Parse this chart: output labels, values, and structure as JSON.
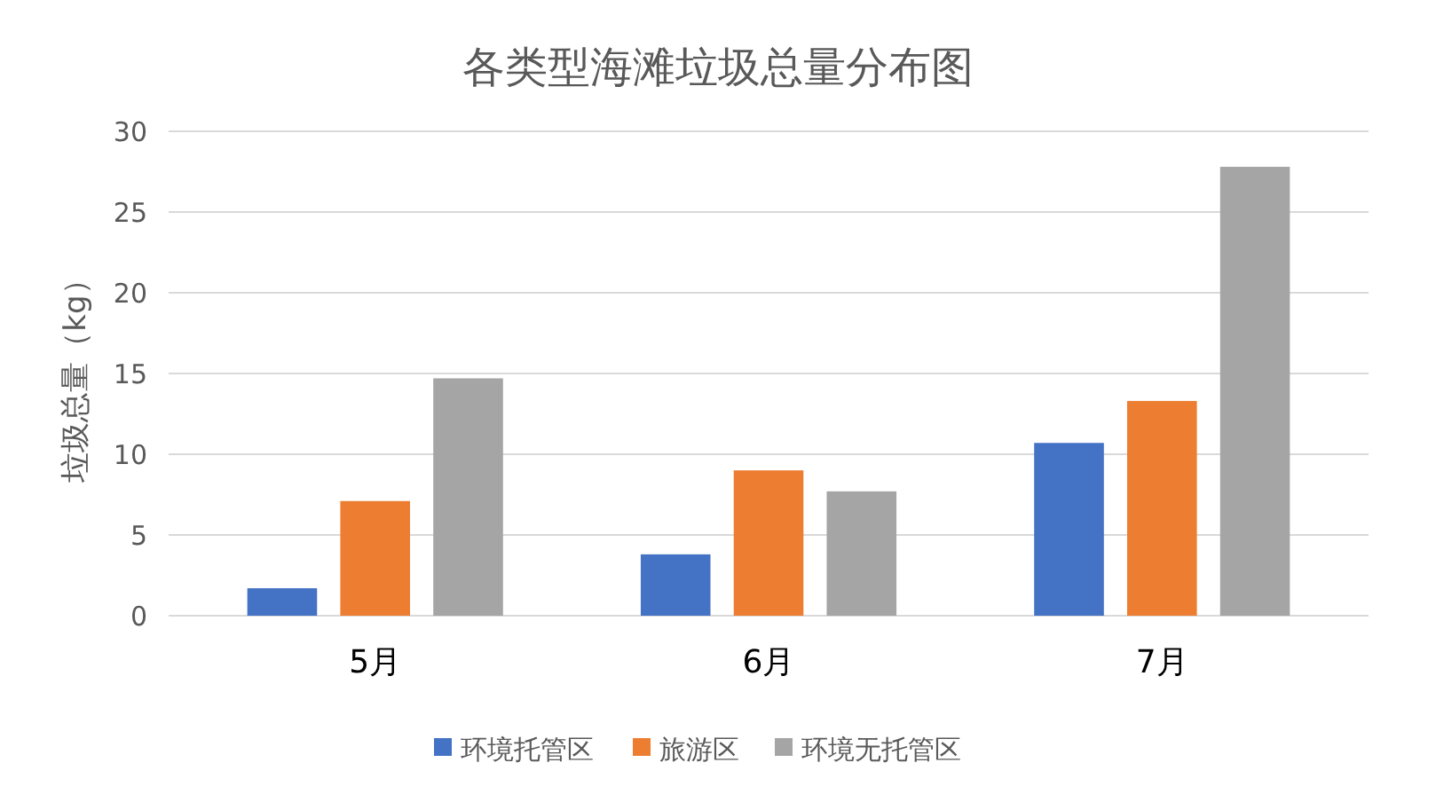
{
  "chart_data": {
    "type": "bar",
    "title": "各类型海滩垃圾总量分布图",
    "ylabel": "垃圾总量（kg）",
    "categories": [
      "5月",
      "6月",
      "7月"
    ],
    "series": [
      {
        "name": "环境托管区",
        "color": "#4472c4",
        "values": [
          1.7,
          3.8,
          10.7
        ]
      },
      {
        "name": "旅游区",
        "color": "#ed7d31",
        "values": [
          7.1,
          9.0,
          13.3
        ]
      },
      {
        "name": "环境无托管区",
        "color": "#a5a5a5",
        "values": [
          14.7,
          7.7,
          27.8
        ]
      }
    ],
    "ylim": [
      0,
      30
    ],
    "yticks": [
      0,
      5,
      10,
      15,
      20,
      25,
      30
    ],
    "grid": "y",
    "legend": "bottom"
  }
}
